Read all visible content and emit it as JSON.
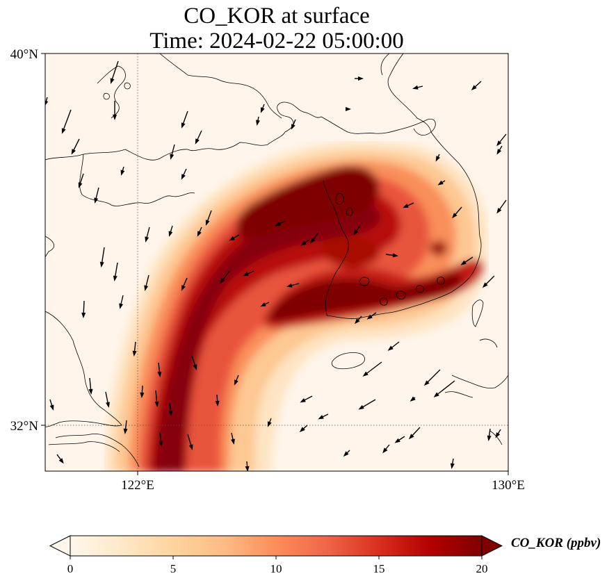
{
  "title": {
    "line1": "CO_KOR at surface",
    "line2": "Time: 2024-02-22 05:00:00"
  },
  "map": {
    "variable": "CO_KOR",
    "level": "surface",
    "lon_range": [
      117,
      130
    ],
    "lat_range": [
      30.7,
      40
    ],
    "gridlines": {
      "lon": [
        122
      ],
      "lat": [
        32
      ],
      "style": "dotted"
    },
    "x_ticks": [
      "122°E",
      "130°E"
    ],
    "y_ticks": [
      "40°N",
      "32°N"
    ],
    "features": [
      "coastline",
      "wind-vectors",
      "filled-concentration-field"
    ]
  },
  "colorbar": {
    "label": "CO_KOR (ppbv)",
    "ticks": [
      "0",
      "5",
      "10",
      "15",
      "20"
    ],
    "range": [
      0,
      20
    ],
    "extend": "both",
    "colormap": "OrRd",
    "colors": [
      "#fff7ec",
      "#fee8c8",
      "#fdd49e",
      "#fdbb84",
      "#fc8d59",
      "#ef6548",
      "#d7301f",
      "#b30000",
      "#7f0000"
    ]
  },
  "chart_data": {
    "type": "heatmap",
    "title": "CO_KOR at surface\nTime: 2024-02-22 05:00:00",
    "xlabel": "",
    "ylabel": "",
    "units": "ppbv",
    "vmin": 0,
    "vmax": 20,
    "plume_axis_lonlat": [
      [
        121.6,
        30.7
      ],
      [
        121.4,
        32.0
      ],
      [
        121.7,
        33.5
      ],
      [
        122.6,
        35.0
      ],
      [
        123.9,
        36.5
      ],
      [
        125.6,
        37.7
      ],
      [
        126.8,
        38.0
      ]
    ],
    "branch_axis_lonlat": [
      [
        124.0,
        34.8
      ],
      [
        125.3,
        35.3
      ],
      [
        126.2,
        35.3
      ],
      [
        127.4,
        35.2
      ],
      [
        128.7,
        35.8
      ]
    ],
    "peak_value": 20
  }
}
